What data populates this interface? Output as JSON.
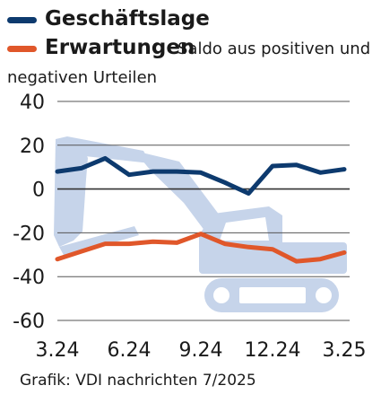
{
  "chart_data": {
    "type": "line",
    "x": [
      "3.24",
      "4.24",
      "5.24",
      "6.24",
      "7.24",
      "8.24",
      "9.24",
      "10.24",
      "11.24",
      "12.24",
      "1.25",
      "2.25",
      "3.25"
    ],
    "series": [
      {
        "name": "Geschäftslage",
        "color": "#0d3a6e",
        "values": [
          8,
          9.5,
          14,
          6.5,
          8,
          8,
          7.5,
          3,
          -2,
          10.5,
          11,
          7.5,
          9
        ]
      },
      {
        "name": "Erwartungen",
        "color": "#e0572a",
        "values": [
          -32,
          -28.5,
          -25,
          -25,
          -24,
          -24.5,
          -20.5,
          -25,
          -26.5,
          -27.5,
          -33,
          -32,
          -29
        ]
      }
    ],
    "x_tick_labels": [
      "3.24",
      "6.24",
      "9.24",
      "12.24",
      "3.25"
    ],
    "y_tick_labels": [
      "40",
      "20",
      "0",
      "-20",
      "-40",
      "-60"
    ],
    "ylim": [
      -60,
      40
    ],
    "grid": "horizontal",
    "legend_position": "top-left",
    "background_illustration": "excavator"
  },
  "legend": {
    "business": "Geschäftslage",
    "expectations": "Erwartungen",
    "note_line1": "Saldo aus positiven und",
    "note_line2": "negativen Urteilen"
  },
  "source": "Grafik: VDI nachrichten 7/2025"
}
